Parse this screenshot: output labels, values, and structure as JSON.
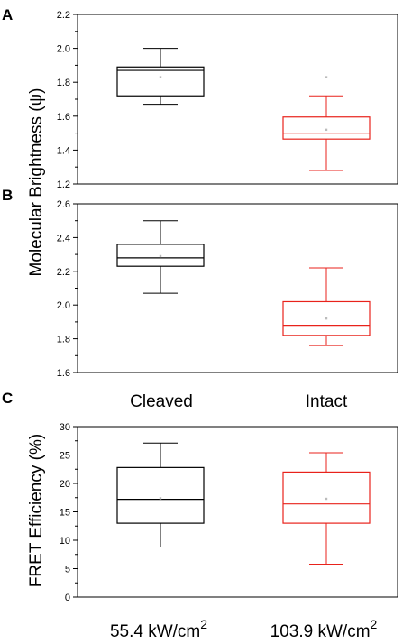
{
  "colors": {
    "cleaved": "#000000",
    "intact": "#e8221b"
  },
  "shared_ylabel": "Molecular Brightness (ψ)",
  "chart_data": [
    {
      "type": "box",
      "panel": "A",
      "ylim": [
        1.2,
        2.2
      ],
      "yticks": [
        "1.2",
        "1.4",
        "1.6",
        "1.8",
        "2.0",
        "2.2"
      ],
      "series": [
        {
          "name": "Cleaved",
          "color": "#000000",
          "whisker_low": 1.67,
          "q1": 1.72,
          "median": 1.87,
          "q3": 1.89,
          "whisker_high": 2.0,
          "mean": 1.83,
          "outliers": []
        },
        {
          "name": "Intact",
          "color": "#e8221b",
          "whisker_low": 1.28,
          "q1": 1.465,
          "median": 1.5,
          "q3": 1.595,
          "whisker_high": 1.72,
          "mean": 1.52,
          "outliers": [
            1.83
          ]
        }
      ]
    },
    {
      "type": "box",
      "panel": "B",
      "ylim": [
        1.6,
        2.6
      ],
      "yticks": [
        "1.6",
        "1.8",
        "2.0",
        "2.2",
        "2.4",
        "2.6"
      ],
      "categories": [
        "Cleaved",
        "Intact"
      ],
      "series": [
        {
          "name": "Cleaved",
          "color": "#000000",
          "whisker_low": 2.07,
          "q1": 2.23,
          "median": 2.28,
          "q3": 2.36,
          "whisker_high": 2.5,
          "mean": 2.29,
          "outliers": []
        },
        {
          "name": "Intact",
          "color": "#e8221b",
          "whisker_low": 1.76,
          "q1": 1.82,
          "median": 1.88,
          "q3": 2.02,
          "whisker_high": 2.22,
          "mean": 1.92,
          "outliers": []
        }
      ]
    },
    {
      "type": "box",
      "panel": "C",
      "ylabel": "FRET Efficiency (%)",
      "ylim": [
        0,
        30
      ],
      "yticks": [
        "0",
        "5",
        "10",
        "15",
        "20",
        "25",
        "30"
      ],
      "categories": [
        "55.4 kW/cm",
        "103.9 kW/cm"
      ],
      "category_superscripts": [
        "2",
        "2"
      ],
      "series": [
        {
          "name": "Cleaved",
          "color": "#000000",
          "whisker_low": 8.8,
          "q1": 13.0,
          "median": 17.2,
          "q3": 22.8,
          "whisker_high": 27.1,
          "mean": 17.4,
          "outliers": []
        },
        {
          "name": "Intact",
          "color": "#e8221b",
          "whisker_low": 5.8,
          "q1": 13.0,
          "median": 16.4,
          "q3": 22.0,
          "whisker_high": 25.4,
          "mean": 17.3,
          "outliers": []
        }
      ]
    }
  ]
}
